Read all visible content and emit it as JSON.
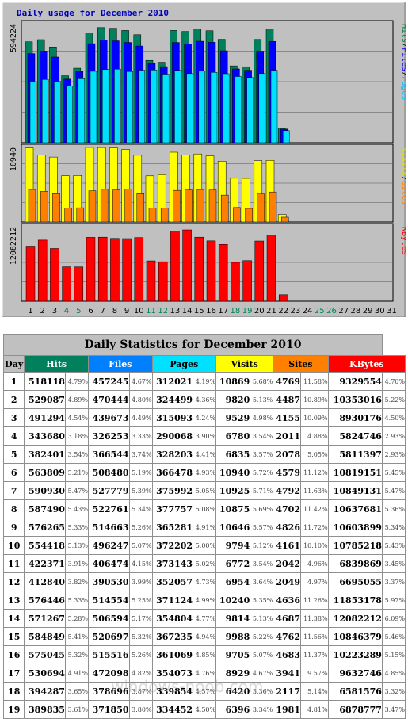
{
  "chart_title": "Daily usage for December 2010",
  "panel1": {
    "max_label": "594224",
    "legend": [
      {
        "text": "Pages",
        "color": "#00c0ff"
      },
      {
        "text": "/",
        "color": "#000000"
      },
      {
        "text": "Files",
        "color": "#0000ff"
      },
      {
        "text": "/",
        "color": "#000000"
      },
      {
        "text": "Hits",
        "color": "#008040"
      }
    ]
  },
  "panel2": {
    "max_label": "10940",
    "legend": [
      {
        "text": "Sites",
        "color": "#ff8000"
      },
      {
        "text": "/",
        "color": "#000000"
      },
      {
        "text": "Visits",
        "color": "#e0e000"
      }
    ]
  },
  "panel3": {
    "max_label": "12082212",
    "legend": [
      {
        "text": "KBytes",
        "color": "#ff0000"
      }
    ]
  },
  "weekend_days": [
    4,
    5,
    11,
    12,
    18,
    19,
    25,
    26
  ],
  "colors": {
    "hits": "#00805c",
    "files": "#0000ff",
    "pages": "#00e0ff",
    "visits": "#ffff00",
    "sites": "#ff8000",
    "kbytes": "#ff0000",
    "weekend": "#00805c"
  },
  "table": {
    "title": "Daily Statistics for December 2010",
    "headers": [
      "Day",
      "Hits",
      "Files",
      "Pages",
      "Visits",
      "Sites",
      "KBytes"
    ]
  },
  "chart_data": {
    "type": "bar",
    "title": "Daily usage for December 2010",
    "categories": [
      1,
      2,
      3,
      4,
      5,
      6,
      7,
      8,
      9,
      10,
      11,
      12,
      13,
      14,
      15,
      16,
      17,
      18,
      19,
      20,
      21,
      22,
      23,
      24,
      25,
      26,
      27,
      28,
      29,
      30,
      31
    ],
    "series": [
      {
        "name": "Hits",
        "values": [
          518118,
          529087,
          491294,
          343680,
          382401,
          563809,
          590930,
          587490,
          576265,
          554418,
          422371,
          412840,
          576446,
          571267,
          584849,
          575045,
          530694,
          394287,
          389835,
          530000,
          583000,
          75000,
          null,
          null,
          null,
          null,
          null,
          null,
          null,
          null,
          null
        ]
      },
      {
        "name": "Files",
        "values": [
          457245,
          470444,
          439673,
          326253,
          366544,
          508480,
          527779,
          522761,
          514663,
          496247,
          406474,
          390530,
          514554,
          506594,
          520697,
          515516,
          472098,
          378696,
          371850,
          470000,
          520000,
          70000,
          null,
          null,
          null,
          null,
          null,
          null,
          null,
          null,
          null
        ]
      },
      {
        "name": "Pages",
        "values": [
          312021,
          324499,
          315093,
          290068,
          328203,
          366478,
          375992,
          377757,
          365281,
          372202,
          373143,
          352057,
          371124,
          354804,
          367235,
          361069,
          354073,
          339854,
          334452,
          355000,
          372000,
          62000,
          null,
          null,
          null,
          null,
          null,
          null,
          null,
          null,
          null
        ]
      },
      {
        "name": "Visits",
        "values": [
          10869,
          9820,
          9529,
          6780,
          6835,
          10940,
          10925,
          10875,
          10646,
          9794,
          6772,
          6954,
          10240,
          9814,
          9988,
          9705,
          8929,
          6420,
          6396,
          9000,
          9050,
          1100,
          null,
          null,
          null,
          null,
          null,
          null,
          null,
          null,
          null
        ]
      },
      {
        "name": "Sites",
        "values": [
          4769,
          4487,
          4155,
          2011,
          2078,
          4579,
          4792,
          4702,
          4826,
          4161,
          2042,
          2049,
          4636,
          4687,
          4762,
          4683,
          3941,
          2117,
          1981,
          4100,
          4400,
          700,
          null,
          null,
          null,
          null,
          null,
          null,
          null,
          null,
          null
        ]
      },
      {
        "name": "KBytes",
        "values": [
          9329554,
          10353016,
          8930176,
          5824746,
          5811397,
          10819151,
          10849131,
          10637681,
          10603899,
          10785218,
          6839869,
          6695055,
          11853178,
          12082212,
          10846379,
          10223289,
          9632746,
          6581576,
          6878777,
          10200000,
          11200000,
          1100000,
          null,
          null,
          null,
          null,
          null,
          null,
          null,
          null,
          null
        ]
      }
    ],
    "ylim_hits": [
      0,
      594224
    ],
    "ylim_visits": [
      0,
      10940
    ],
    "ylim_kbytes": [
      0,
      12082212
    ]
  },
  "rows": [
    {
      "day": "1",
      "hits": "518118",
      "hits_pct": "4.79%",
      "files": "457245",
      "files_pct": "4.67%",
      "pages": "312021",
      "pages_pct": "4.19%",
      "visits": "10869",
      "visits_pct": "5.68%",
      "sites": "4769",
      "sites_pct": "11.58%",
      "kb": "9329554",
      "kb_pct": "4.70%"
    },
    {
      "day": "2",
      "hits": "529087",
      "hits_pct": "4.89%",
      "files": "470444",
      "files_pct": "4.80%",
      "pages": "324499",
      "pages_pct": "4.36%",
      "visits": "9820",
      "visits_pct": "5.13%",
      "sites": "4487",
      "sites_pct": "10.89%",
      "kb": "10353016",
      "kb_pct": "5.22%"
    },
    {
      "day": "3",
      "hits": "491294",
      "hits_pct": "4.54%",
      "files": "439673",
      "files_pct": "4.49%",
      "pages": "315093",
      "pages_pct": "4.24%",
      "visits": "9529",
      "visits_pct": "4.98%",
      "sites": "4155",
      "sites_pct": "10.09%",
      "kb": "8930176",
      "kb_pct": "4.50%"
    },
    {
      "day": "4",
      "hits": "343680",
      "hits_pct": "3.18%",
      "files": "326253",
      "files_pct": "3.33%",
      "pages": "290068",
      "pages_pct": "3.90%",
      "visits": "6780",
      "visits_pct": "3.54%",
      "sites": "2011",
      "sites_pct": "4.88%",
      "kb": "5824746",
      "kb_pct": "2.93%"
    },
    {
      "day": "5",
      "hits": "382401",
      "hits_pct": "3.54%",
      "files": "366544",
      "files_pct": "3.74%",
      "pages": "328203",
      "pages_pct": "4.41%",
      "visits": "6835",
      "visits_pct": "3.57%",
      "sites": "2078",
      "sites_pct": "5.05%",
      "kb": "5811397",
      "kb_pct": "2.93%"
    },
    {
      "day": "6",
      "hits": "563809",
      "hits_pct": "5.21%",
      "files": "508480",
      "files_pct": "5.19%",
      "pages": "366478",
      "pages_pct": "4.93%",
      "visits": "10940",
      "visits_pct": "5.72%",
      "sites": "4579",
      "sites_pct": "11.12%",
      "kb": "10819151",
      "kb_pct": "5.45%"
    },
    {
      "day": "7",
      "hits": "590930",
      "hits_pct": "5.47%",
      "files": "527779",
      "files_pct": "5.39%",
      "pages": "375992",
      "pages_pct": "5.05%",
      "visits": "10925",
      "visits_pct": "5.71%",
      "sites": "4792",
      "sites_pct": "11.63%",
      "kb": "10849131",
      "kb_pct": "5.47%"
    },
    {
      "day": "8",
      "hits": "587490",
      "hits_pct": "5.43%",
      "files": "522761",
      "files_pct": "5.34%",
      "pages": "377757",
      "pages_pct": "5.08%",
      "visits": "10875",
      "visits_pct": "5.69%",
      "sites": "4702",
      "sites_pct": "11.42%",
      "kb": "10637681",
      "kb_pct": "5.36%"
    },
    {
      "day": "9",
      "hits": "576265",
      "hits_pct": "5.33%",
      "files": "514663",
      "files_pct": "5.26%",
      "pages": "365281",
      "pages_pct": "4.91%",
      "visits": "10646",
      "visits_pct": "5.57%",
      "sites": "4826",
      "sites_pct": "11.72%",
      "kb": "10603899",
      "kb_pct": "5.34%"
    },
    {
      "day": "10",
      "hits": "554418",
      "hits_pct": "5.13%",
      "files": "496247",
      "files_pct": "5.07%",
      "pages": "372202",
      "pages_pct": "5.00%",
      "visits": "9794",
      "visits_pct": "5.12%",
      "sites": "4161",
      "sites_pct": "10.10%",
      "kb": "10785218",
      "kb_pct": "5.43%"
    },
    {
      "day": "11",
      "hits": "422371",
      "hits_pct": "3.91%",
      "files": "406474",
      "files_pct": "4.15%",
      "pages": "373143",
      "pages_pct": "5.02%",
      "visits": "6772",
      "visits_pct": "3.54%",
      "sites": "2042",
      "sites_pct": "4.96%",
      "kb": "6839869",
      "kb_pct": "3.45%"
    },
    {
      "day": "12",
      "hits": "412840",
      "hits_pct": "3.82%",
      "files": "390530",
      "files_pct": "3.99%",
      "pages": "352057",
      "pages_pct": "4.73%",
      "visits": "6954",
      "visits_pct": "3.64%",
      "sites": "2049",
      "sites_pct": "4.97%",
      "kb": "6695055",
      "kb_pct": "3.37%"
    },
    {
      "day": "13",
      "hits": "576446",
      "hits_pct": "5.33%",
      "files": "514554",
      "files_pct": "5.25%",
      "pages": "371124",
      "pages_pct": "4.99%",
      "visits": "10240",
      "visits_pct": "5.35%",
      "sites": "4636",
      "sites_pct": "11.26%",
      "kb": "11853178",
      "kb_pct": "5.97%"
    },
    {
      "day": "14",
      "hits": "571267",
      "hits_pct": "5.28%",
      "files": "506594",
      "files_pct": "5.17%",
      "pages": "354804",
      "pages_pct": "4.77%",
      "visits": "9814",
      "visits_pct": "5.13%",
      "sites": "4687",
      "sites_pct": "11.38%",
      "kb": "12082212",
      "kb_pct": "6.09%"
    },
    {
      "day": "15",
      "hits": "584849",
      "hits_pct": "5.41%",
      "files": "520697",
      "files_pct": "5.32%",
      "pages": "367235",
      "pages_pct": "4.94%",
      "visits": "9988",
      "visits_pct": "5.22%",
      "sites": "4762",
      "sites_pct": "11.56%",
      "kb": "10846379",
      "kb_pct": "5.46%"
    },
    {
      "day": "16",
      "hits": "575045",
      "hits_pct": "5.32%",
      "files": "515516",
      "files_pct": "5.26%",
      "pages": "361069",
      "pages_pct": "4.85%",
      "visits": "9705",
      "visits_pct": "5.07%",
      "sites": "4683",
      "sites_pct": "11.37%",
      "kb": "10223289",
      "kb_pct": "5.15%"
    },
    {
      "day": "17",
      "hits": "530694",
      "hits_pct": "4.91%",
      "files": "472098",
      "files_pct": "4.82%",
      "pages": "354073",
      "pages_pct": "4.76%",
      "visits": "8929",
      "visits_pct": "4.67%",
      "sites": "3941",
      "sites_pct": "9.57%",
      "kb": "9632746",
      "kb_pct": "4.85%"
    },
    {
      "day": "18",
      "hits": "394287",
      "hits_pct": "3.65%",
      "files": "378696",
      "files_pct": "3.87%",
      "pages": "339854",
      "pages_pct": "4.57%",
      "visits": "6420",
      "visits_pct": "3.36%",
      "sites": "2117",
      "sites_pct": "5.14%",
      "kb": "6581576",
      "kb_pct": "3.32%"
    },
    {
      "day": "19",
      "hits": "389835",
      "hits_pct": "3.61%",
      "files": "371850",
      "files_pct": "3.80%",
      "pages": "334452",
      "pages_pct": "4.50%",
      "visits": "6396",
      "visits_pct": "3.34%",
      "sites": "1981",
      "sites_pct": "4.81%",
      "kb": "6878777",
      "kb_pct": "3.47%"
    }
  ],
  "watermark": "windows-noob.com"
}
